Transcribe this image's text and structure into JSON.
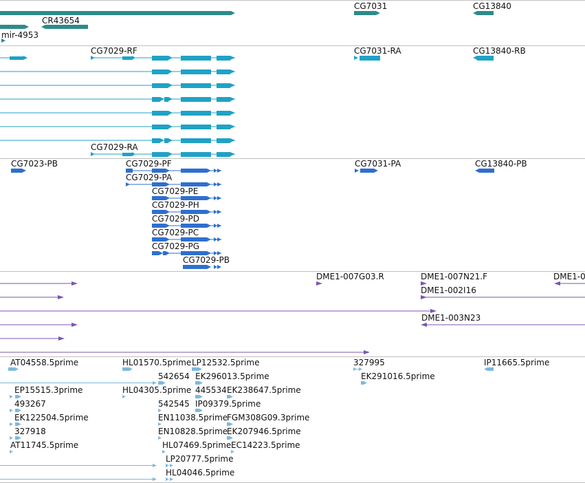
{
  "colors": {
    "gene": "#2e8b8b",
    "transcript": "#1fa2c6",
    "cds": "#2f6fcf",
    "clone": "#7b55b0",
    "est": "#7fb8dd",
    "separator": "#bfbfbf"
  },
  "tracks": [
    {
      "name": "genes",
      "color_key": "gene",
      "labels": [
        {
          "text": "CG7031",
          "id": "CG7031"
        },
        {
          "text": "CG13840",
          "id": "CG13840"
        },
        {
          "text": "CR43654",
          "id": "CR43654"
        },
        {
          "text": "mir-4953",
          "id": "mir-4953"
        }
      ]
    },
    {
      "name": "transcripts",
      "color_key": "transcript",
      "labels": [
        {
          "text": "CG7029-RF",
          "id": "CG7029-RF"
        },
        {
          "text": "CG7031-RA",
          "id": "CG7031-RA"
        },
        {
          "text": "CG13840-RB",
          "id": "CG13840-RB"
        },
        {
          "text": "CG7029-RA",
          "id": "CG7029-RA"
        }
      ]
    },
    {
      "name": "proteins",
      "color_key": "cds",
      "labels": [
        {
          "text": "CG7023-PB",
          "id": "CG7023-PB"
        },
        {
          "text": "CG7029-PF",
          "id": "CG7029-PF"
        },
        {
          "text": "CG7031-PA",
          "id": "CG7031-PA"
        },
        {
          "text": "CG13840-PB",
          "id": "CG13840-PB"
        },
        {
          "text": "CG7029-PA",
          "id": "CG7029-PA"
        },
        {
          "text": "CG7029-PE",
          "id": "CG7029-PE"
        },
        {
          "text": "CG7029-PH",
          "id": "CG7029-PH"
        },
        {
          "text": "CG7029-PD",
          "id": "CG7029-PD"
        },
        {
          "text": "CG7029-PC",
          "id": "CG7029-PC"
        },
        {
          "text": "CG7029-PG",
          "id": "CG7029-PG"
        },
        {
          "text": "CG7029-PB",
          "id": "CG7029-PB"
        }
      ]
    },
    {
      "name": "clones",
      "color_key": "clone",
      "labels": [
        {
          "text": "DME1-007G03.R",
          "id": "DME1-007G03.R"
        },
        {
          "text": "DME1-007N21.F",
          "id": "DME1-007N21.F"
        },
        {
          "text": "DME1-0",
          "id": "DME1-0"
        },
        {
          "text": "DME1-002I16",
          "id": "DME1-002I16"
        },
        {
          "text": "DME1-003N23",
          "id": "DME1-003N23"
        }
      ]
    },
    {
      "name": "ests",
      "color_key": "est",
      "labels": [
        {
          "text": "AT04558.5prime",
          "id": "AT04558.5prime"
        },
        {
          "text": "HL01570.5prime",
          "id": "HL01570.5prime"
        },
        {
          "text": "LP12532.5prime",
          "id": "LP12532.5prime"
        },
        {
          "text": "327995",
          "id": "327995a"
        },
        {
          "text": "IP11665.5prime",
          "id": "IP11665.5prime"
        },
        {
          "text": "542654",
          "id": "542654"
        },
        {
          "text": "EK296013.5prime",
          "id": "EK296013.5prime"
        },
        {
          "text": "EK291016.5prime",
          "id": "EK291016.5prime"
        },
        {
          "text": "EP15515.3prime",
          "id": "EP15515.3prime"
        },
        {
          "text": "HL04305.5prime",
          "id": "HL04305.5prime"
        },
        {
          "text": "445534",
          "id": "445534"
        },
        {
          "text": "EK238647.5prime",
          "id": "EK238647.5prime"
        },
        {
          "text": "493267",
          "id": "493267"
        },
        {
          "text": "542545",
          "id": "542545"
        },
        {
          "text": "IP09379.5prime",
          "id": "IP09379.5prime"
        },
        {
          "text": "EK122504.5prime",
          "id": "EK122504.5prime"
        },
        {
          "text": "EN11038.5prime",
          "id": "EN11038.5prime"
        },
        {
          "text": "FGM308G09.3prime",
          "id": "FGM308G09.3prime"
        },
        {
          "text": "327918",
          "id": "327918"
        },
        {
          "text": "EN10828.5prime",
          "id": "EN10828.5prime"
        },
        {
          "text": "EK207946.5prime",
          "id": "EK207946.5prime"
        },
        {
          "text": "AT11745.5prime",
          "id": "AT11745.5prime"
        },
        {
          "text": "HL07469.5prime",
          "id": "HL07469.5prime"
        },
        {
          "text": "EC14223.5prime",
          "id": "EC14223.5prime"
        },
        {
          "text": "LP20777.5prime",
          "id": "LP20777.5prime"
        },
        {
          "text": "HL04046.5prime",
          "id": "HL04046.5prime"
        }
      ]
    }
  ]
}
